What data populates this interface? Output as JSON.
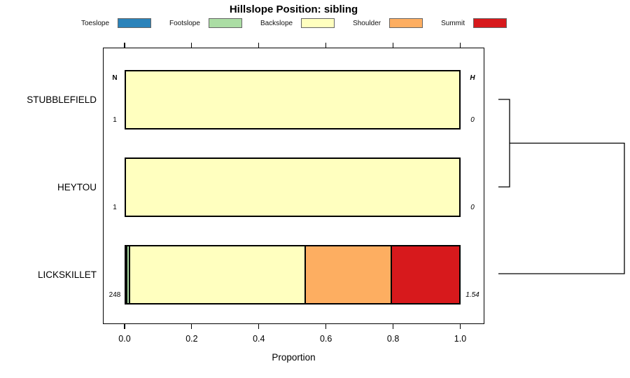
{
  "title": "Hillslope Position: sibling",
  "legend": [
    {
      "label": "Toeslope",
      "color": "#2B83BA"
    },
    {
      "label": "Footslope",
      "color": "#ABDDA4"
    },
    {
      "label": "Backslope",
      "color": "#FFFFBF"
    },
    {
      "label": "Shoulder",
      "color": "#FDAE61"
    },
    {
      "label": "Summit",
      "color": "#D7191C"
    }
  ],
  "chart_data": {
    "type": "bar",
    "orientation": "horizontal-stacked",
    "title": "Hillslope Position: sibling",
    "xlabel": "Proportion",
    "xlim": [
      0,
      1
    ],
    "x_ticks": [
      0.0,
      0.2,
      0.4,
      0.6,
      0.8,
      1.0
    ],
    "x_tick_labels": [
      "0.0",
      "0.2",
      "0.4",
      "0.6",
      "0.8",
      "1.0"
    ],
    "categories": [
      "STUBBLEFIELD",
      "HEYTOU",
      "LICKSKILLET"
    ],
    "series": [
      {
        "name": "Toeslope",
        "color": "#2B83BA",
        "values": [
          0,
          0,
          0.004
        ]
      },
      {
        "name": "Footslope",
        "color": "#ABDDA4",
        "values": [
          0,
          0,
          0.008
        ]
      },
      {
        "name": "Backslope",
        "color": "#FFFFBF",
        "values": [
          1,
          1,
          0.528
        ]
      },
      {
        "name": "Shoulder",
        "color": "#FDAE61",
        "values": [
          0,
          0,
          0.259
        ]
      },
      {
        "name": "Summit",
        "color": "#D7191C",
        "values": [
          0,
          0,
          0.201
        ]
      }
    ],
    "annotations": {
      "left_header": "N",
      "right_header": "H",
      "n_values": [
        "1",
        "1",
        "248"
      ],
      "h_values": [
        "0",
        "0",
        "1.54"
      ]
    },
    "dendrogram": {
      "first_merge": [
        "STUBBLEFIELD",
        "HEYTOU"
      ],
      "second_merge": "LICKSKILLET"
    },
    "legend_position": "top"
  }
}
